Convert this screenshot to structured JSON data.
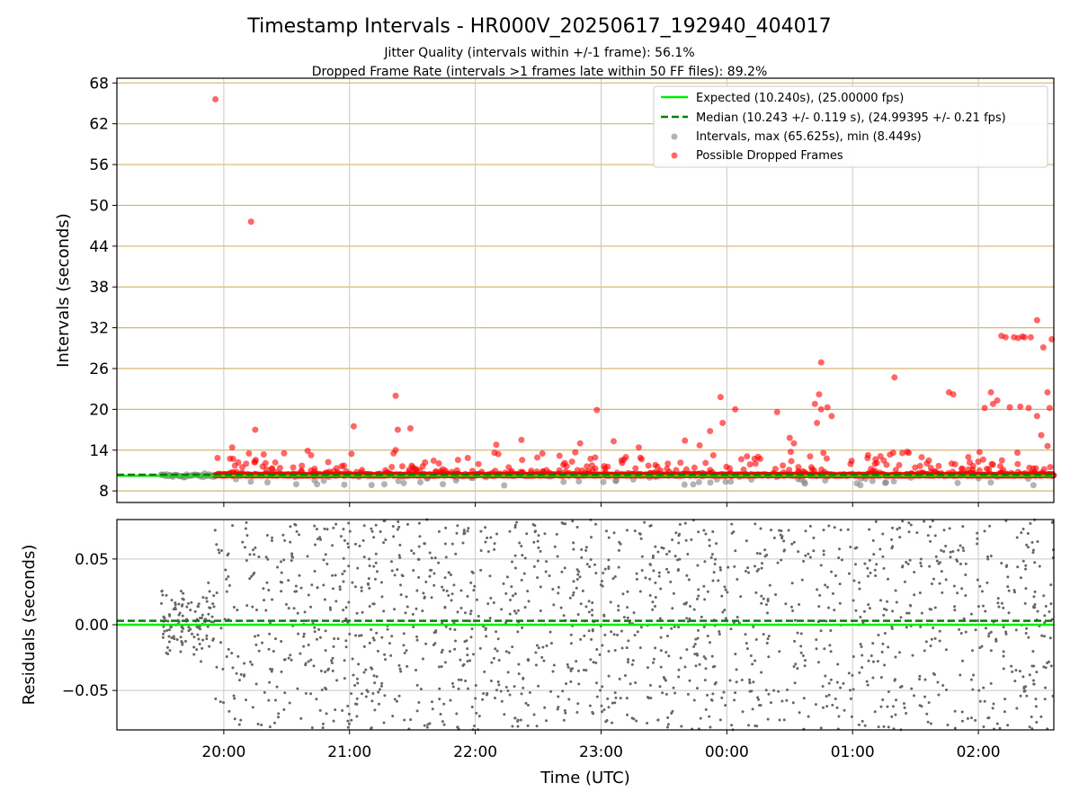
{
  "title": "Timestamp Intervals - HR000V_20250617_192940_404017",
  "subtitle_1": "Jitter Quality (intervals within +/-1 frame): 56.1%",
  "subtitle_2": "Dropped Frame Rate (intervals >1 frames late within 50 FF files): 89.2%",
  "colors": {
    "expected": "#00ee00",
    "median": "#008000",
    "intervals": "#808080",
    "dropped": "#ff0000",
    "hgrid_top": "#d4b86a",
    "grid": "#c8c8c8",
    "residual_points": "#666666"
  },
  "chart_data": [
    {
      "type": "scatter",
      "panel": "top",
      "ylabel": "Intervals (seconds)",
      "ylim": [
        6.3,
        68.7
      ],
      "yticks": [
        "8",
        "14",
        "20",
        "26",
        "32",
        "38",
        "44",
        "50",
        "56",
        "62",
        "68"
      ],
      "xticks": [
        "20:00",
        "21:00",
        "22:00",
        "23:00",
        "00:00",
        "01:00",
        "02:00"
      ],
      "x_range_hours": [
        19.15,
        26.6
      ],
      "grid": "on",
      "legend_placement": "top-right",
      "legend": [
        "Expected (10.240s), (25.00000 fps)",
        "Median (10.243 +/- 0.119 s), (24.99395 +/- 0.21 fps)",
        "Intervals, max (65.625s), min (8.449s)",
        "Possible Dropped Frames"
      ],
      "expected_line": 10.24,
      "median_line": 10.243,
      "dropped_outliers": [
        {
          "t": "19:56",
          "v": 65.6
        },
        {
          "t": "20:13",
          "v": 47.6
        },
        {
          "t": "20:15",
          "v": 17.0
        },
        {
          "t": "20:04",
          "v": 14.4
        },
        {
          "t": "20:12",
          "v": 13.5
        },
        {
          "t": "20:40",
          "v": 13.9
        },
        {
          "t": "21:02",
          "v": 17.5
        },
        {
          "t": "21:22",
          "v": 22.0
        },
        {
          "t": "21:23",
          "v": 17.0
        },
        {
          "t": "21:29",
          "v": 17.2
        },
        {
          "t": "21:22",
          "v": 14.0
        },
        {
          "t": "21:36",
          "v": 12.2
        },
        {
          "t": "22:10",
          "v": 14.8
        },
        {
          "t": "22:22",
          "v": 15.5
        },
        {
          "t": "22:32",
          "v": 13.5
        },
        {
          "t": "22:50",
          "v": 15.0
        },
        {
          "t": "22:58",
          "v": 19.9
        },
        {
          "t": "23:06",
          "v": 15.3
        },
        {
          "t": "23:18",
          "v": 14.4
        },
        {
          "t": "23:40",
          "v": 15.4
        },
        {
          "t": "23:47",
          "v": 14.7
        },
        {
          "t": "23:52",
          "v": 16.8
        },
        {
          "t": "23:57",
          "v": 21.8
        },
        {
          "t": "23:58",
          "v": 18.0
        },
        {
          "t": "00:04",
          "v": 20.0
        },
        {
          "t": "00:24",
          "v": 19.6
        },
        {
          "t": "00:30",
          "v": 15.8
        },
        {
          "t": "00:32",
          "v": 15.0
        },
        {
          "t": "00:42",
          "v": 20.8
        },
        {
          "t": "00:45",
          "v": 26.9
        },
        {
          "t": "00:44",
          "v": 22.2
        },
        {
          "t": "00:43",
          "v": 18.0
        },
        {
          "t": "00:45",
          "v": 20.0
        },
        {
          "t": "00:48",
          "v": 20.3
        },
        {
          "t": "00:50",
          "v": 19.0
        },
        {
          "t": "01:20",
          "v": 24.7
        },
        {
          "t": "01:46",
          "v": 22.5
        },
        {
          "t": "01:48",
          "v": 22.2
        },
        {
          "t": "02:03",
          "v": 20.2
        },
        {
          "t": "02:06",
          "v": 22.5
        },
        {
          "t": "02:07",
          "v": 20.8
        },
        {
          "t": "02:09",
          "v": 21.3
        },
        {
          "t": "02:11",
          "v": 30.8
        },
        {
          "t": "02:13",
          "v": 30.6
        },
        {
          "t": "02:17",
          "v": 30.6
        },
        {
          "t": "02:19",
          "v": 30.5
        },
        {
          "t": "02:21",
          "v": 30.7
        },
        {
          "t": "02:22",
          "v": 30.6
        },
        {
          "t": "02:25",
          "v": 30.6
        },
        {
          "t": "02:28",
          "v": 33.1
        },
        {
          "t": "02:31",
          "v": 29.1
        },
        {
          "t": "02:35",
          "v": 30.3
        },
        {
          "t": "02:33",
          "v": 22.5
        },
        {
          "t": "02:34",
          "v": 20.2
        },
        {
          "t": "02:28",
          "v": 19.0
        },
        {
          "t": "02:30",
          "v": 16.2
        },
        {
          "t": "02:33",
          "v": 14.6
        },
        {
          "t": "02:15",
          "v": 20.3
        },
        {
          "t": "02:20",
          "v": 20.4
        },
        {
          "t": "02:24",
          "v": 20.2
        }
      ]
    },
    {
      "type": "scatter",
      "panel": "bottom",
      "ylabel": "Residuals (seconds)",
      "xlabel": "Time (UTC)",
      "ylim": [
        -0.08,
        0.08
      ],
      "yticks": [
        "0.05",
        "0.00",
        "−0.05"
      ],
      "xticks": [
        "20:00",
        "21:00",
        "22:00",
        "23:00",
        "00:00",
        "01:00",
        "02:00"
      ],
      "grid": "on",
      "expected_line": 0.0,
      "median_line": 0.003,
      "residual_spread_early": 0.03,
      "residual_spread_late": 0.08
    }
  ]
}
